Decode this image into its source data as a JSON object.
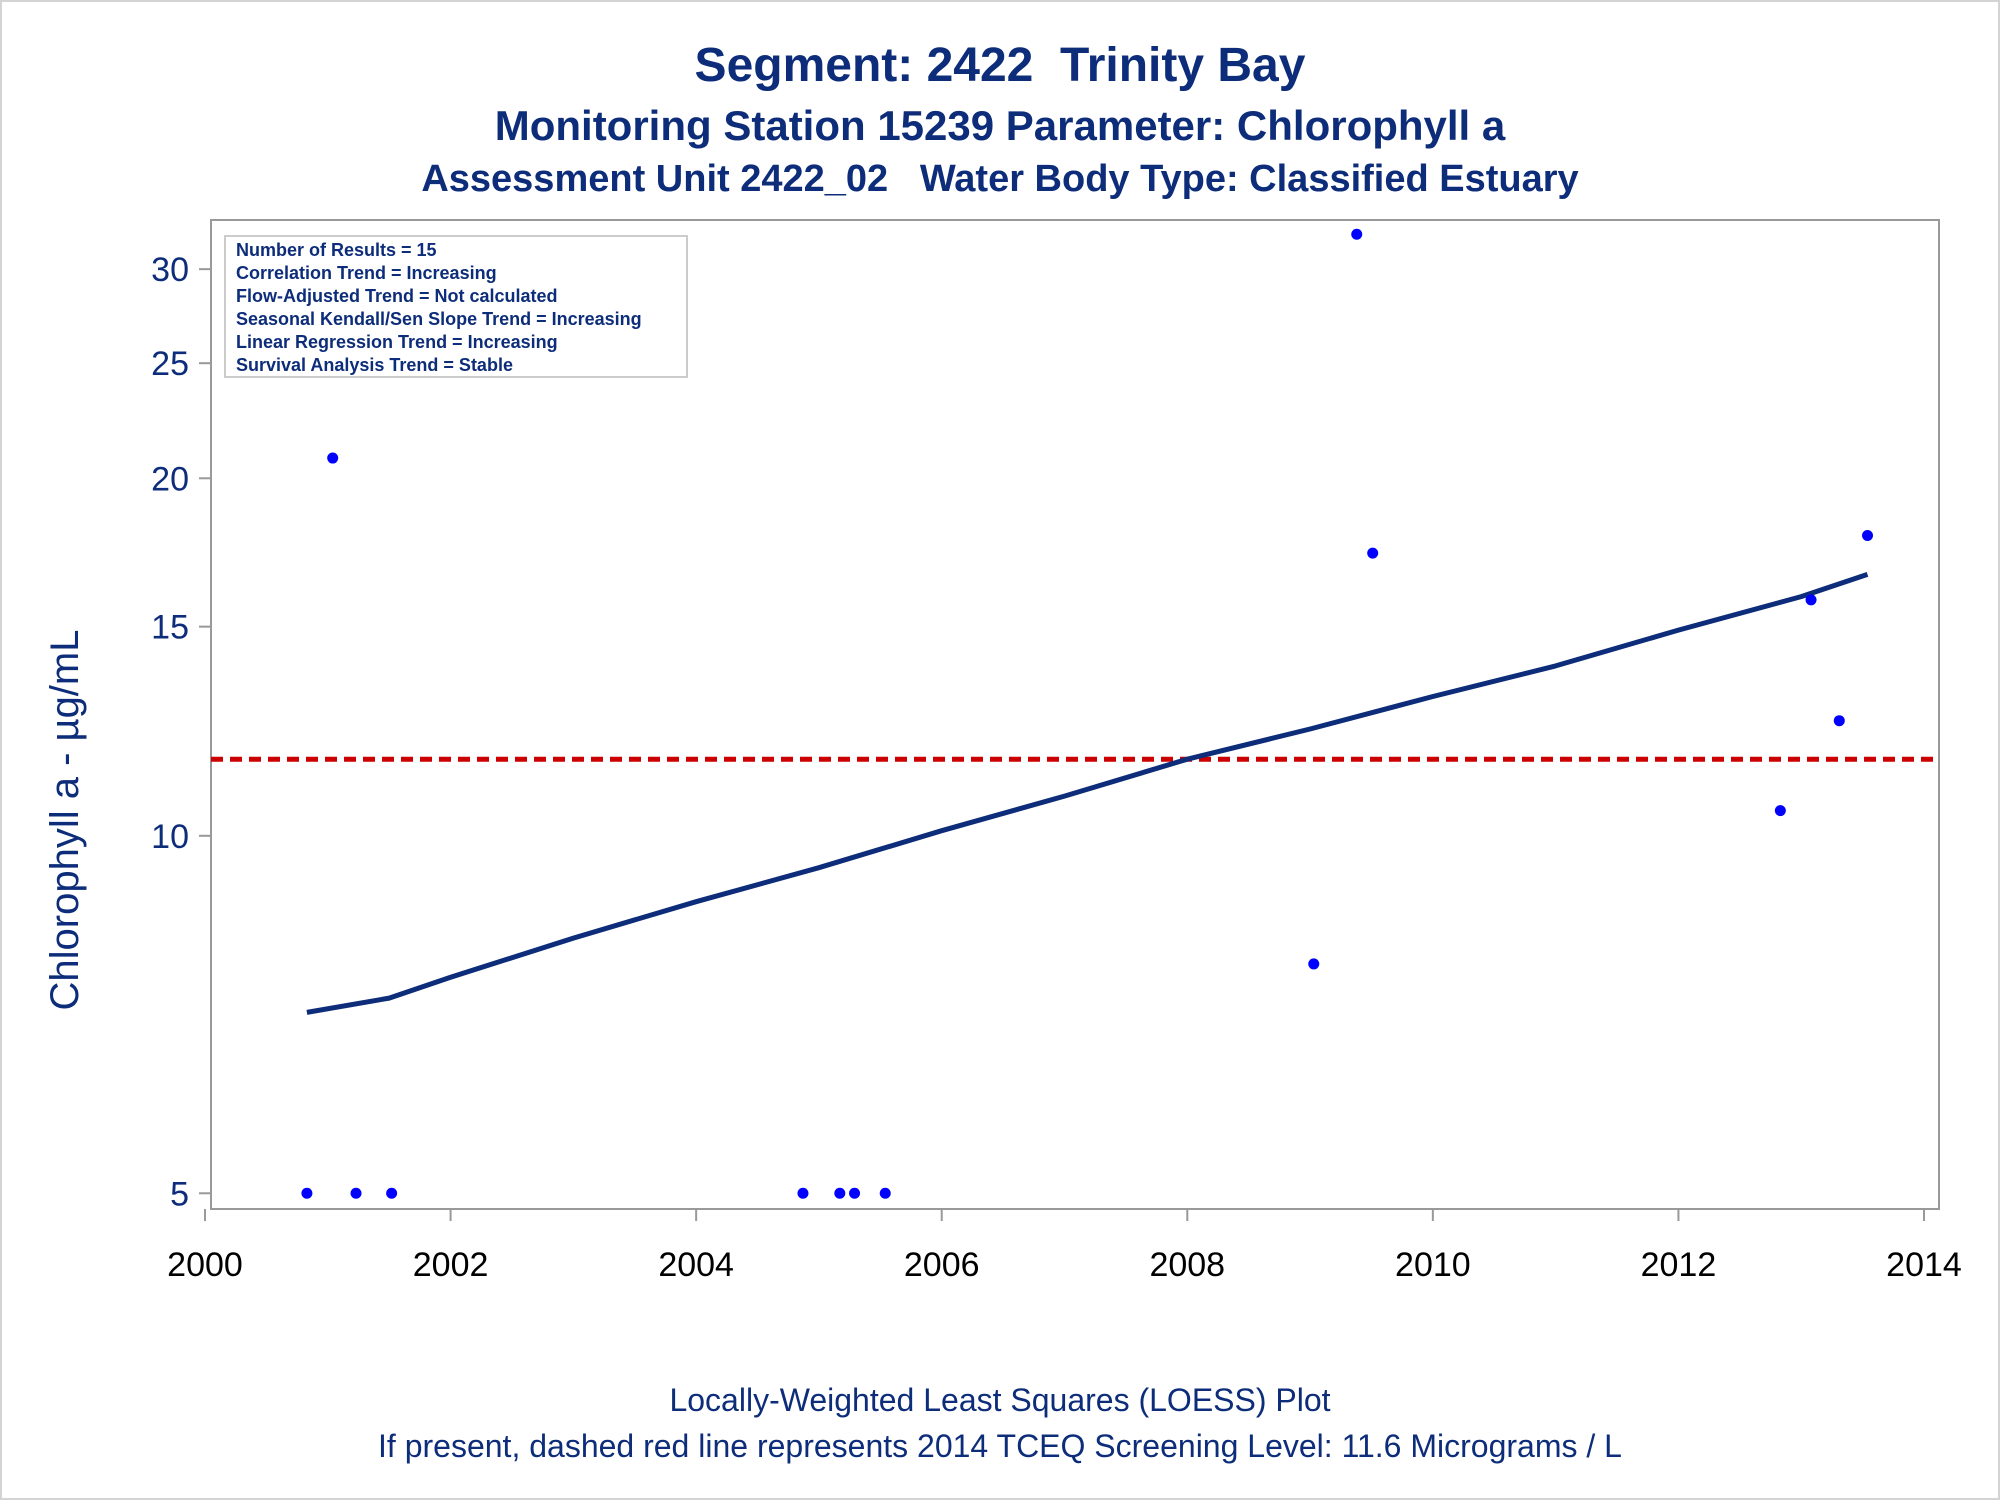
{
  "titles": {
    "line1": "Segment: 2422  Trinity Bay",
    "line2": "Monitoring Station 15239 Parameter: Chlorophyll a",
    "line3": "Assessment Unit 2422_02   Water Body Type: Classified Estuary"
  },
  "footnotes": {
    "line1": "Locally-Weighted Least Squares (LOESS) Plot",
    "line2": "If present, dashed red line represents 2014 TCEQ Screening Level: 11.6 Micrograms / L"
  },
  "stats_box": [
    "Number of Results = 15",
    "Correlation Trend = Increasing",
    "Flow-Adjusted Trend = Not calculated",
    "Seasonal Kendall/Sen Slope Trend = Increasing",
    "Linear Regression Trend = Increasing",
    "Survival Analysis Trend = Stable"
  ],
  "colors": {
    "text": "#0d2d7a",
    "points": "#0000ff",
    "loess": "#0d2d7a",
    "screening_line": "#cc0000",
    "axis": "#999999"
  },
  "chart_data": {
    "type": "scatter",
    "ylabel": "Chlorophyll a -  µg/mL",
    "xlabel": "",
    "y_scale": "log",
    "xlim": [
      2000,
      2014
    ],
    "ylim": [
      4.85,
      33
    ],
    "x_ticks": [
      2000,
      2002,
      2004,
      2006,
      2008,
      2010,
      2012,
      2014
    ],
    "y_ticks": [
      5,
      10,
      15,
      20,
      25,
      30
    ],
    "grid": false,
    "series": [
      {
        "type": "scatter",
        "x": [
          2000.83,
          2001.04,
          2001.23,
          2001.52,
          2004.87,
          2005.17,
          2005.29,
          2005.54,
          2009.03,
          2009.38,
          2009.51,
          2012.83,
          2013.08,
          2013.31,
          2013.54
        ],
        "y": [
          5,
          20.8,
          5,
          5,
          5,
          5,
          5,
          5,
          7.8,
          32.1,
          17.3,
          10.5,
          15.8,
          12.5,
          17.9
        ]
      },
      {
        "type": "line",
        "x": [
          2000.83,
          2001.5,
          2002,
          2003,
          2004,
          2005,
          2006,
          2007,
          2008,
          2009,
          2010,
          2011,
          2012,
          2013,
          2013.54
        ],
        "y": [
          7.1,
          7.3,
          7.6,
          8.2,
          8.8,
          9.4,
          10.1,
          10.8,
          11.6,
          12.3,
          13.1,
          13.9,
          14.9,
          15.9,
          16.6
        ]
      }
    ],
    "screening_level": 11.6
  }
}
